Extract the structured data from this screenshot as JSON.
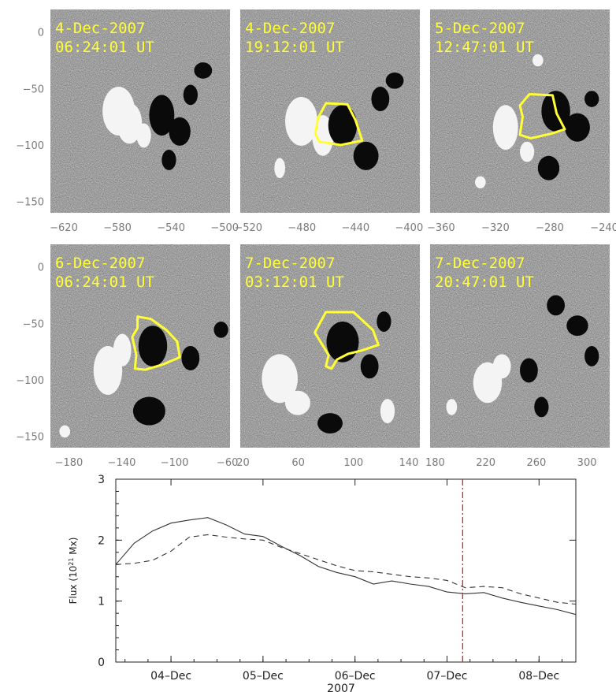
{
  "chart_data": [
    {
      "type": "magnetogram-panels",
      "y_ticks": [
        "0",
        "-50",
        "-100",
        "-150"
      ],
      "y_tick_values": [
        0,
        -50,
        -100,
        -150
      ],
      "ylim": [
        -160,
        20
      ],
      "contour_color": "#ffff33",
      "panels": [
        {
          "date": "4-Dec-2007",
          "time": "06:24:01 UT",
          "xlim": [
            -630,
            -496
          ],
          "x_ticks": [
            "-620",
            "-580",
            "-540",
            "-500"
          ],
          "x_tick_values": [
            -620,
            -580,
            -540,
            -500
          ],
          "contour": []
        },
        {
          "date": "4-Dec-2007",
          "time": "19:12:01 UT",
          "xlim": [
            -526,
            -392
          ],
          "x_ticks": [
            "-520",
            "-480",
            "-440",
            "-400"
          ],
          "x_tick_values": [
            -520,
            -480,
            -440,
            -400
          ],
          "contour": [
            [
              -462,
              -63
            ],
            [
              -446,
              -64
            ],
            [
              -440,
              -78
            ],
            [
              -435,
              -96
            ],
            [
              -451,
              -100
            ],
            [
              -467,
              -97
            ],
            [
              -470,
              -90
            ],
            [
              -468,
              -76
            ]
          ]
        },
        {
          "date": "5-Dec-2007",
          "time": "12:47:01 UT",
          "xlim": [
            -368,
            -236
          ],
          "x_ticks": [
            "-360",
            "-320",
            "-280",
            "-240"
          ],
          "x_tick_values": [
            -360,
            -320,
            -280,
            -240
          ],
          "contour": [
            [
              -295,
              -55
            ],
            [
              -278,
              -56
            ],
            [
              -275,
              -72
            ],
            [
              -269,
              -86
            ],
            [
              -279,
              -90
            ],
            [
              -294,
              -94
            ],
            [
              -302,
              -91
            ],
            [
              -300,
              -75
            ],
            [
              -302,
              -65
            ]
          ]
        },
        {
          "date": "6-Dec-2007",
          "time": "06:24:01 UT",
          "xlim": [
            -194,
            -58
          ],
          "x_ticks": [
            "-180",
            "-140",
            "-100",
            "-60"
          ],
          "x_tick_values": [
            -180,
            -140,
            -100,
            -60
          ],
          "contour": [
            [
              -128,
              -44
            ],
            [
              -118,
              -46
            ],
            [
              -106,
              -56
            ],
            [
              -98,
              -66
            ],
            [
              -96,
              -80
            ],
            [
              -108,
              -86
            ],
            [
              -122,
              -91
            ],
            [
              -130,
              -90
            ],
            [
              -129,
              -78
            ],
            [
              -132,
              -62
            ],
            [
              -128,
              -54
            ]
          ]
        },
        {
          "date": "7-Dec-2007",
          "time": "03:12:01 UT",
          "xlim": [
            18,
            148
          ],
          "x_ticks": [
            "20",
            "60",
            "100",
            "140"
          ],
          "x_tick_values": [
            20,
            60,
            100,
            140
          ],
          "contour": [
            [
              80,
              -40
            ],
            [
              100,
              -40
            ],
            [
              114,
              -56
            ],
            [
              118,
              -69
            ],
            [
              106,
              -74
            ],
            [
              96,
              -77
            ],
            [
              88,
              -82
            ],
            [
              84,
              -90
            ],
            [
              80,
              -88
            ],
            [
              82,
              -78
            ],
            [
              76,
              -66
            ],
            [
              72,
              -58
            ]
          ]
        },
        {
          "date": "7-Dec-2007",
          "time": "20:47:01 UT",
          "xlim": [
            176,
            318
          ],
          "x_ticks": [
            "180",
            "220",
            "260",
            "300"
          ],
          "x_tick_values": [
            180,
            220,
            260,
            300
          ],
          "contour": []
        }
      ]
    },
    {
      "type": "line",
      "xlabel": "2007",
      "ylabel_text": "Flux (10",
      "ylabel_sup": "21",
      "ylabel_unit": " Mx)",
      "xlim": [
        3.4,
        8.4
      ],
      "ylim": [
        0,
        3
      ],
      "x_ticks": [
        "04–Dec",
        "05–Dec",
        "06–Dec",
        "07–Dec",
        "08–Dec"
      ],
      "x_tick_values": [
        4,
        5,
        6,
        7,
        8
      ],
      "y_ticks": [
        "0",
        "1",
        "2",
        "3"
      ],
      "y_tick_values": [
        0,
        1,
        2,
        3
      ],
      "marker_x": 7.17,
      "marker_color": "#d42020",
      "series": [
        {
          "style": "solid",
          "x": [
            3.4,
            3.6,
            3.8,
            4.0,
            4.2,
            4.4,
            4.6,
            4.8,
            5.0,
            5.2,
            5.4,
            5.6,
            5.8,
            6.0,
            6.2,
            6.4,
            6.6,
            6.8,
            7.0,
            7.2,
            7.4,
            7.6,
            7.8,
            8.0,
            8.2,
            8.4
          ],
          "values": [
            1.6,
            1.95,
            2.15,
            2.28,
            2.33,
            2.37,
            2.25,
            2.1,
            2.06,
            1.9,
            1.75,
            1.57,
            1.47,
            1.4,
            1.28,
            1.33,
            1.28,
            1.24,
            1.15,
            1.12,
            1.14,
            1.05,
            0.98,
            0.92,
            0.86,
            0.78
          ]
        },
        {
          "style": "dashed",
          "x": [
            3.4,
            3.6,
            3.8,
            4.0,
            4.2,
            4.4,
            4.6,
            4.8,
            5.0,
            5.2,
            5.4,
            5.6,
            5.8,
            6.0,
            6.2,
            6.4,
            6.6,
            6.8,
            7.0,
            7.2,
            7.4,
            7.6,
            7.8,
            8.0,
            8.2,
            8.4
          ],
          "values": [
            1.6,
            1.62,
            1.67,
            1.82,
            2.05,
            2.09,
            2.05,
            2.02,
            2.0,
            1.88,
            1.78,
            1.68,
            1.58,
            1.5,
            1.48,
            1.44,
            1.4,
            1.38,
            1.34,
            1.22,
            1.24,
            1.22,
            1.12,
            1.05,
            0.98,
            0.95
          ]
        }
      ]
    }
  ]
}
